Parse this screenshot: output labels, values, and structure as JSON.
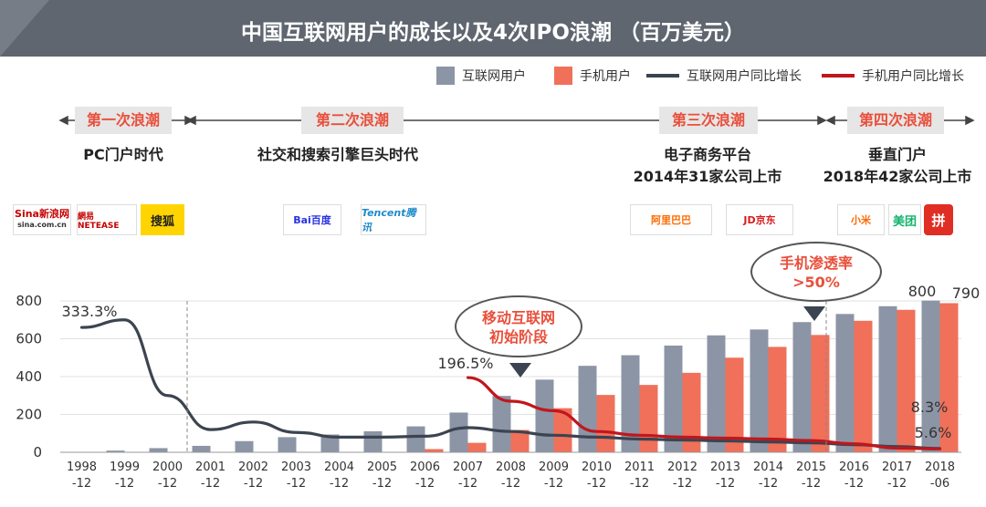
{
  "title": "中国互联网用户的成长以及4次IPO浪潮 （百万美元）",
  "legend": {
    "internet_users": "互联网用户",
    "mobile_users": "手机用户",
    "internet_growth": "互联网用户同比增长",
    "mobile_growth": "手机用户同比增长"
  },
  "waves": [
    {
      "label": "第一次浪潮",
      "desc": [
        "PC门户时代"
      ]
    },
    {
      "label": "第二次浪潮",
      "desc": [
        "社交和搜索引擎巨头时代"
      ]
    },
    {
      "label": "第三次浪潮",
      "desc": [
        "电子商务平台",
        "2014年31家公司上市"
      ]
    },
    {
      "label": "第四次浪潮",
      "desc": [
        "垂直门户",
        "2018年42家公司上市"
      ]
    }
  ],
  "logos": {
    "sina": "Sina新浪网",
    "sina_url": "sina.com.cn",
    "netease": "網易 NETEASE",
    "sohu": "搜狐",
    "baidu": "Bai百度",
    "tencent": "Tencent腾讯",
    "alibaba": "阿里巴巴",
    "jd": "JD京东",
    "xiaomi": "小米",
    "meituan": "美团",
    "pinduoduo": "拼"
  },
  "bubbles": {
    "mobile_internet": [
      "移动互联网",
      "初始阶段"
    ],
    "mobile_penetration": [
      "手机渗透率",
      ">50%"
    ]
  },
  "colors": {
    "internet_bar": "#8c95a5",
    "mobile_bar": "#f0705a",
    "internet_line": "#3b4450",
    "mobile_line": "#c0161d",
    "wave_text": "#e94f3b"
  },
  "chart_data": {
    "type": "bar",
    "categories": [
      "1998\n-12",
      "1999\n-12",
      "2000\n-12",
      "2001\n-12",
      "2002\n-12",
      "2003\n-12",
      "2004\n-12",
      "2005\n-12",
      "2006\n-12",
      "2007\n-12",
      "2008\n-12",
      "2009\n-12",
      "2010\n-12",
      "2011\n-12",
      "2012\n-12",
      "2013\n-12",
      "2014\n-12",
      "2015\n-12",
      "2016\n-12",
      "2017\n-12",
      "2018\n-06"
    ],
    "ylim": [
      0,
      800
    ],
    "yticks": [
      "0",
      "200",
      "400",
      "600",
      "800"
    ],
    "series": [
      {
        "name": "互联网用户",
        "type": "bar",
        "values": [
          2,
          9,
          22,
          34,
          59,
          80,
          94,
          111,
          137,
          210,
          298,
          384,
          457,
          513,
          564,
          618,
          649,
          688,
          731,
          772,
          802
        ]
      },
      {
        "name": "手机用户",
        "type": "bar",
        "values": [
          null,
          null,
          null,
          null,
          null,
          null,
          null,
          null,
          17,
          50,
          118,
          233,
          303,
          356,
          420,
          500,
          557,
          620,
          695,
          753,
          788
        ]
      },
      {
        "name": "互联网用户同比增长",
        "type": "line",
        "values": [
          660,
          700,
          300,
          120,
          160,
          105,
          80,
          80,
          85,
          130,
          110,
          90,
          80,
          70,
          65,
          60,
          55,
          50,
          40,
          30,
          20
        ]
      },
      {
        "name": "手机用户同比增长",
        "type": "line",
        "values": [
          null,
          null,
          null,
          null,
          null,
          null,
          null,
          null,
          null,
          395,
          270,
          220,
          110,
          90,
          80,
          75,
          70,
          62,
          45,
          22,
          18
        ]
      }
    ],
    "data_labels": [
      {
        "text": "333.3%"
      },
      {
        "text": "196.5%"
      },
      {
        "text": "800"
      },
      {
        "text": "790"
      },
      {
        "text": "8.3%"
      },
      {
        "text": "5.6%"
      }
    ]
  }
}
